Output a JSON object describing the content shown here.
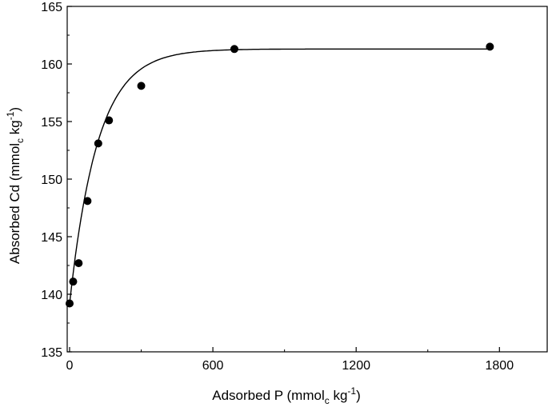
{
  "chart_data": {
    "type": "scatter",
    "title": "",
    "xlabel": {
      "main": "Adsorbed P (mmol",
      "sub": "c",
      "mid": " kg",
      "sup": "-1",
      "end": ")"
    },
    "ylabel": {
      "main": "Absorbed Cd (mmol",
      "sub": "c",
      "mid": " kg",
      "sup": "-1",
      "end": ")"
    },
    "xlim": [
      -10,
      2000
    ],
    "ylim": [
      135,
      165
    ],
    "xticks": [
      0,
      600,
      1200,
      1800
    ],
    "xtick_labels": [
      "0",
      "600",
      "1200",
      "1800"
    ],
    "yticks": [
      135,
      140,
      145,
      150,
      155,
      160,
      165
    ],
    "ytick_labels": [
      "135",
      "140",
      "145",
      "150",
      "155",
      "160",
      "165"
    ],
    "grid": false,
    "legend": "none",
    "series": [
      {
        "kind": "points",
        "marker": "filled-circle",
        "color": "#000000",
        "x": [
          0,
          15,
          38,
          75,
          120,
          165,
          300,
          690,
          1760
        ],
        "y": [
          139.2,
          141.1,
          142.7,
          148.1,
          153.1,
          155.1,
          158.1,
          161.3,
          161.5
        ]
      },
      {
        "kind": "fitted-curve",
        "color": "#000000",
        "model": "exponential-saturation",
        "params": {
          "y0": 139.2,
          "ymax": 161.3,
          "k": 0.0085
        },
        "x_range": [
          0,
          1760
        ]
      }
    ]
  }
}
